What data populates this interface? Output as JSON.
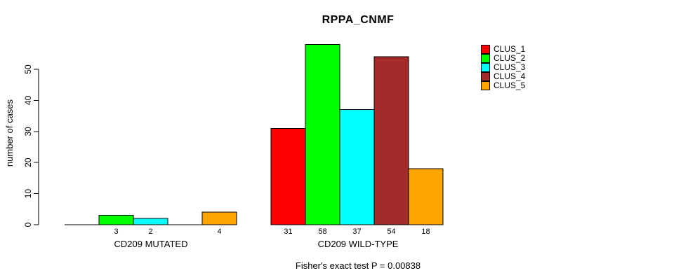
{
  "chart_data": {
    "type": "bar",
    "title": "RPPA_CNMF",
    "ylabel": "number of cases",
    "xlabel": "",
    "categories": [
      "CD209 MUTATED",
      "CD209 WILD-TYPE"
    ],
    "series": [
      {
        "name": "CLUS_1",
        "color": "#FF0000",
        "values": [
          0,
          31
        ]
      },
      {
        "name": "CLUS_2",
        "color": "#00FF00",
        "values": [
          3,
          58
        ]
      },
      {
        "name": "CLUS_3",
        "color": "#00FFFF",
        "values": [
          2,
          37
        ]
      },
      {
        "name": "CLUS_4",
        "color": "#A52A2A",
        "values": [
          0,
          54
        ]
      },
      {
        "name": "CLUS_5",
        "color": "#FFA500",
        "values": [
          4,
          18
        ]
      }
    ],
    "bar_value_labels": [
      [
        "",
        "3",
        "2",
        "",
        "4"
      ],
      [
        "31",
        "58",
        "37",
        "54",
        "18"
      ]
    ],
    "yticks": [
      0,
      10,
      20,
      30,
      40,
      50
    ],
    "ylim": [
      0,
      58
    ],
    "grid": false,
    "legend_position": "right-outside",
    "annotation": "Fisher's exact test P = 0.00838",
    "axis_color": "#000000",
    "bar_border_color": "#000000"
  }
}
